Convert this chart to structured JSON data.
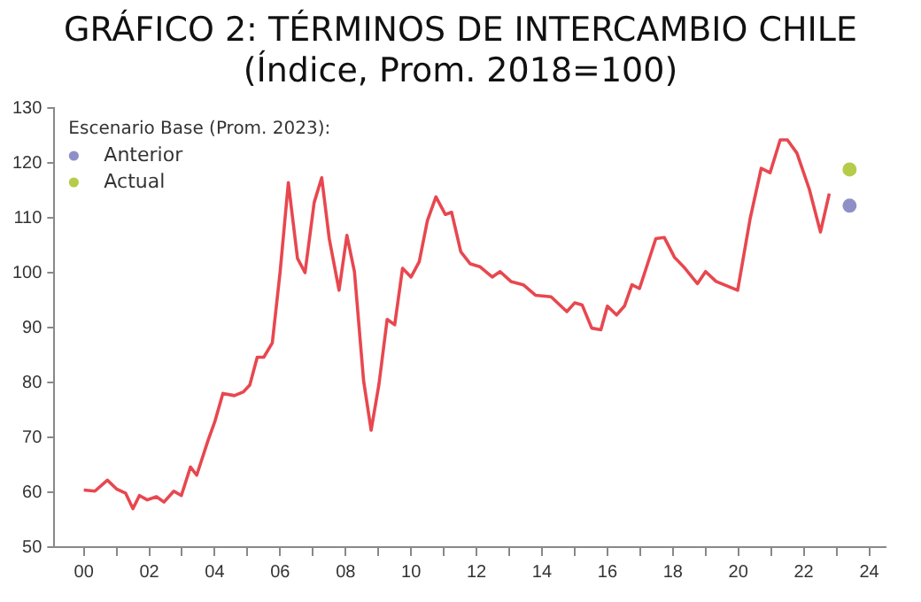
{
  "chart_data": {
    "type": "line",
    "title": "GRÁFICO 2: TÉRMINOS DE INTERCAMBIO CHILE",
    "subtitle": "(Índice, Prom. 2018=100)",
    "legend_title": "Escenario Base (Prom. 2023):",
    "legend": "top left",
    "grid": false,
    "marker": "none",
    "line_style": "solid",
    "xlim": [
      -0.9,
      24.5
    ],
    "ylim": [
      50,
      130
    ],
    "yticks": [
      50,
      60,
      70,
      80,
      90,
      100,
      110,
      120,
      130
    ],
    "xticks": [
      {
        "value": 0,
        "label": "00"
      },
      {
        "value": 1,
        "label": null
      },
      {
        "value": 2,
        "label": "02"
      },
      {
        "value": 3,
        "label": null
      },
      {
        "value": 4,
        "label": "04"
      },
      {
        "value": 5,
        "label": null
      },
      {
        "value": 6,
        "label": "06"
      },
      {
        "value": 7,
        "label": null
      },
      {
        "value": 8,
        "label": "08"
      },
      {
        "value": 9,
        "label": null
      },
      {
        "value": 10,
        "label": "10"
      },
      {
        "value": 11,
        "label": null
      },
      {
        "value": 12,
        "label": "12"
      },
      {
        "value": 13,
        "label": null
      },
      {
        "value": 14,
        "label": "14"
      },
      {
        "value": 15,
        "label": null
      },
      {
        "value": 16,
        "label": "16"
      },
      {
        "value": 17,
        "label": null
      },
      {
        "value": 18,
        "label": "18"
      },
      {
        "value": 19,
        "label": null
      },
      {
        "value": 20,
        "label": "20"
      },
      {
        "value": 21,
        "label": null
      },
      {
        "value": 22,
        "label": "22"
      },
      {
        "value": 23,
        "label": null
      },
      {
        "value": 24,
        "label": "24"
      }
    ],
    "series": [
      {
        "color": "#e8474f",
        "x": [
          0,
          0.34,
          0.72,
          1.0,
          1.28,
          1.5,
          1.7,
          1.94,
          2.22,
          2.45,
          2.75,
          2.98,
          3.26,
          3.45,
          3.8,
          4.0,
          4.25,
          4.6,
          4.88,
          5.07,
          5.3,
          5.5,
          5.76,
          6.0,
          6.25,
          6.53,
          6.76,
          7.04,
          7.27,
          7.5,
          7.8,
          8.04,
          8.27,
          8.55,
          8.78,
          9.02,
          9.27,
          9.5,
          9.74,
          10.0,
          10.25,
          10.5,
          10.76,
          11.05,
          11.24,
          11.52,
          11.81,
          12.1,
          12.48,
          12.72,
          13.05,
          13.43,
          13.8,
          14.28,
          14.76,
          15.0,
          15.23,
          15.52,
          15.8,
          16.0,
          16.28,
          16.52,
          16.75,
          16.98,
          17.48,
          17.74,
          18.05,
          18.37,
          18.75,
          19.0,
          19.32,
          19.98,
          20.36,
          20.7,
          20.97,
          21.28,
          21.5,
          21.79,
          22.17,
          22.51,
          22.78
        ],
        "values": [
          60.4,
          60.2,
          62.2,
          60.6,
          59.8,
          57.0,
          59.4,
          58.6,
          59.2,
          58.2,
          60.2,
          59.4,
          64.6,
          63.1,
          69.5,
          72.8,
          78.0,
          77.6,
          78.3,
          79.5,
          84.6,
          84.6,
          87.2,
          100.2,
          116.4,
          102.6,
          100.0,
          112.8,
          117.3,
          106.2,
          96.8,
          106.8,
          100.2,
          80.3,
          71.3,
          79.7,
          91.5,
          90.5,
          100.8,
          99.2,
          102.0,
          109.5,
          113.8,
          110.6,
          111.0,
          103.8,
          101.6,
          101.1,
          99.2,
          100.2,
          98.4,
          97.8,
          95.9,
          95.6,
          92.9,
          94.5,
          94.1,
          89.9,
          89.6,
          93.9,
          92.3,
          93.9,
          97.8,
          97.1,
          106.2,
          106.4,
          102.8,
          100.8,
          98.0,
          100.2,
          98.4,
          96.8,
          109.8,
          119.0,
          118.2,
          124.2,
          124.2,
          121.8,
          115.2,
          107.4,
          114.4
        ]
      },
      {
        "type": "scatter",
        "name": "Anterior",
        "color": "#8f8fc8",
        "marker": "circle",
        "x": [
          23.4
        ],
        "values": [
          112.2
        ]
      },
      {
        "type": "scatter",
        "name": "Actual",
        "color": "#b5cc4a",
        "marker": "circle",
        "x": [
          23.4
        ],
        "values": [
          118.8
        ]
      }
    ]
  }
}
